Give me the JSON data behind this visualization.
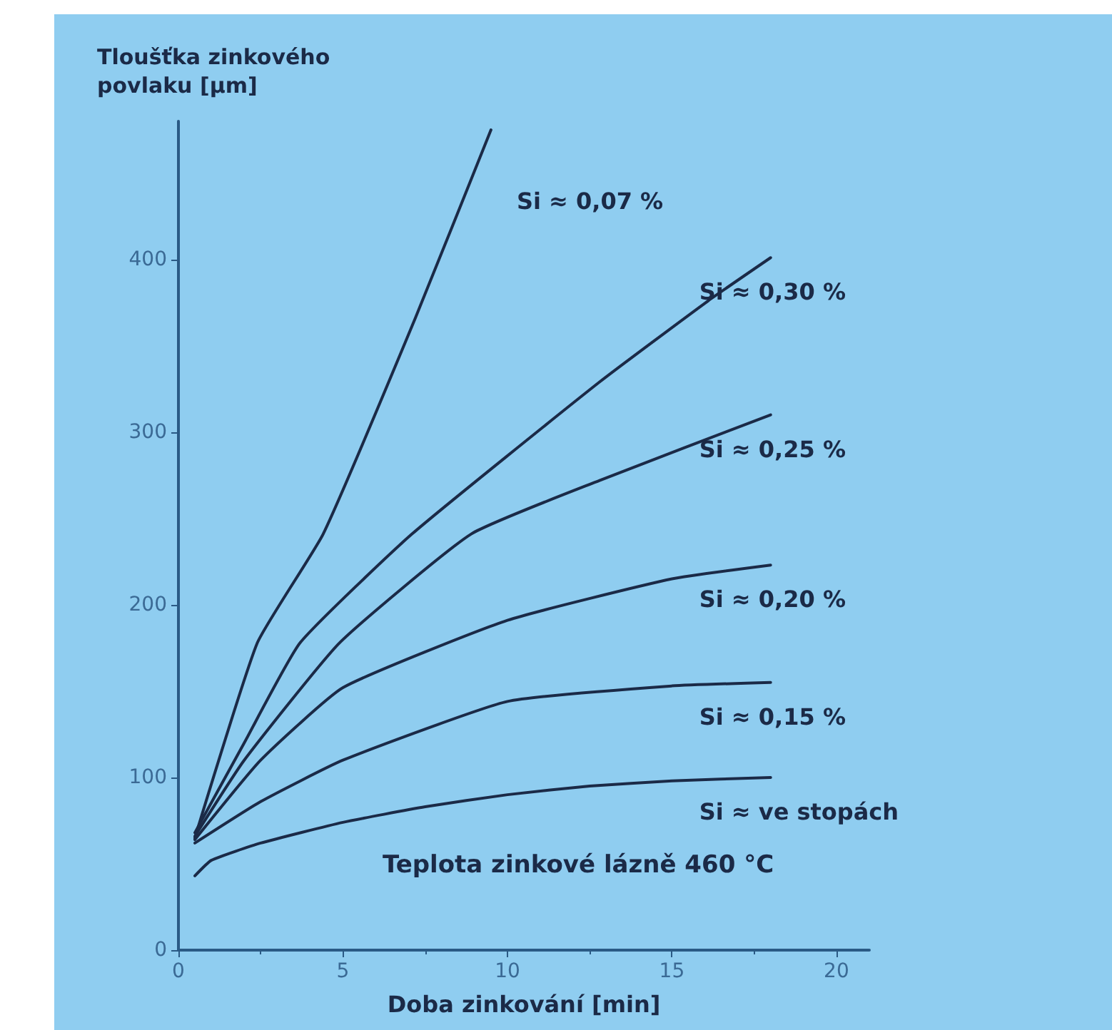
{
  "chart_data": {
    "type": "line",
    "xlabel": "Doba zinkování [min]",
    "ylabel": "Tloušťka zinkového povlaku [µm]",
    "annotations": [
      "Teplota zinkové lázně 460 °C"
    ],
    "xlim": [
      0,
      21
    ],
    "xticks": [
      0,
      5,
      10,
      15,
      20
    ],
    "ylim": [
      0,
      480
    ],
    "yticks": [
      0,
      100,
      200,
      300,
      400
    ],
    "grid": false,
    "legend": false,
    "marker": "none",
    "line_style": "solid",
    "series": [
      {
        "name": "Si ≈ 0,07 %",
        "color": "#1b2a47",
        "x": [
          0.5,
          2.4,
          4.4,
          7.2,
          9.5
        ],
        "values": [
          65,
          178,
          241,
          366,
          475
        ]
      },
      {
        "name": "Si ≈ 0,30 %",
        "color": "#1b2a47",
        "x": [
          0.5,
          2,
          3.7,
          7.1,
          12.8,
          16.1,
          18
        ],
        "values": [
          68,
          120,
          178,
          241,
          329,
          376,
          401
        ]
      },
      {
        "name": "Si ≈ 0,25 %",
        "color": "#1b2a47",
        "x": [
          0.5,
          2,
          4.9,
          8.9,
          12.8,
          18
        ],
        "values": [
          66,
          110,
          178,
          241,
          272,
          310
        ]
      },
      {
        "name": "Si ≈ 0,20 %",
        "color": "#1b2a47",
        "x": [
          0.5,
          2.5,
          5,
          10,
          15,
          18
        ],
        "values": [
          64,
          110,
          152,
          191,
          215,
          223
        ]
      },
      {
        "name": "Si ≈ 0,15 %",
        "color": "#1b2a47",
        "x": [
          0.5,
          2.5,
          5,
          10,
          15,
          18
        ],
        "values": [
          62,
          86,
          110,
          144,
          153,
          155
        ]
      },
      {
        "name": "Si ≈ ve stopách",
        "color": "#1b2a47",
        "x": [
          0.5,
          1,
          2.5,
          5,
          7.5,
          10,
          12.5,
          15,
          18
        ],
        "values": [
          43,
          52,
          62,
          74,
          83,
          90,
          95,
          98,
          100
        ]
      }
    ]
  }
}
